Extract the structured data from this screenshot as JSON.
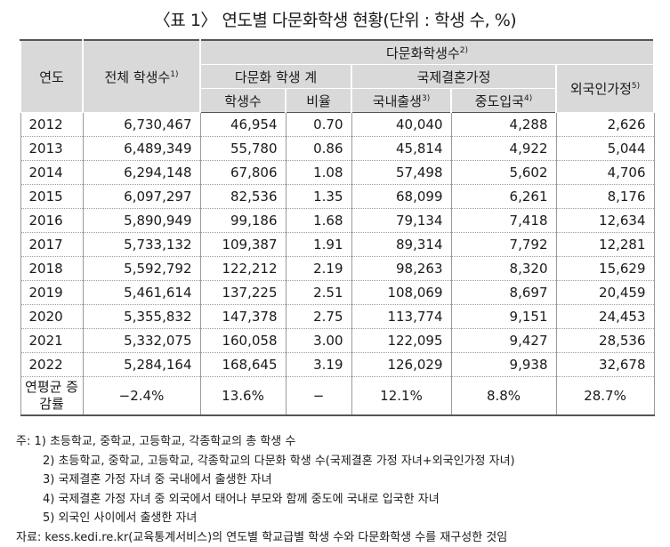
{
  "title": "〈표 1〉 연도별 다문화학생 현황(단위 : 학생 수, %)",
  "header": {
    "year": "연도",
    "total": "전체 학생수",
    "total_sup": "1)",
    "multi_group": "다문화학생수",
    "multi_group_sup": "2)",
    "multi_total": "다문화 학생 계",
    "intl_marriage": "국제결혼가정",
    "foreign": "외국인가정",
    "foreign_sup": "5)",
    "students": "학생수",
    "ratio": "비율",
    "domestic_born": "국내출생",
    "domestic_born_sup": "3)",
    "mid_entry": "중도입국",
    "mid_entry_sup": "4)"
  },
  "rows": [
    {
      "year": "2012",
      "total": "6,730,467",
      "students": "46,954",
      "ratio": "0.70",
      "domestic": "40,040",
      "mid": "4,288",
      "foreign": "2,626"
    },
    {
      "year": "2013",
      "total": "6,489,349",
      "students": "55,780",
      "ratio": "0.86",
      "domestic": "45,814",
      "mid": "4,922",
      "foreign": "5,044"
    },
    {
      "year": "2014",
      "total": "6,294,148",
      "students": "67,806",
      "ratio": "1.08",
      "domestic": "57,498",
      "mid": "5,602",
      "foreign": "4,706"
    },
    {
      "year": "2015",
      "total": "6,097,297",
      "students": "82,536",
      "ratio": "1.35",
      "domestic": "68,099",
      "mid": "6,261",
      "foreign": "8,176"
    },
    {
      "year": "2016",
      "total": "5,890,949",
      "students": "99,186",
      "ratio": "1.68",
      "domestic": "79,134",
      "mid": "7,418",
      "foreign": "12,634"
    },
    {
      "year": "2017",
      "total": "5,733,132",
      "students": "109,387",
      "ratio": "1.91",
      "domestic": "89,314",
      "mid": "7,792",
      "foreign": "12,281"
    },
    {
      "year": "2018",
      "total": "5,592,792",
      "students": "122,212",
      "ratio": "2.19",
      "domestic": "98,263",
      "mid": "8,320",
      "foreign": "15,629"
    },
    {
      "year": "2019",
      "total": "5,461,614",
      "students": "137,225",
      "ratio": "2.51",
      "domestic": "108,069",
      "mid": "8,697",
      "foreign": "20,459"
    },
    {
      "year": "2020",
      "total": "5,355,832",
      "students": "147,378",
      "ratio": "2.75",
      "domestic": "113,774",
      "mid": "9,151",
      "foreign": "24,453"
    },
    {
      "year": "2021",
      "total": "5,332,075",
      "students": "160,058",
      "ratio": "3.00",
      "domestic": "122,095",
      "mid": "9,427",
      "foreign": "28,536"
    },
    {
      "year": "2022",
      "total": "5,284,164",
      "students": "168,645",
      "ratio": "3.19",
      "domestic": "126,029",
      "mid": "9,938",
      "foreign": "32,678"
    }
  ],
  "growth": {
    "label": "연평균 증감률",
    "total": "−2.4%",
    "students": "13.6%",
    "ratio": "−",
    "domestic": "12.1%",
    "mid": "8.8%",
    "foreign": "28.7%"
  },
  "notes": {
    "prefix": "주:",
    "n1": "1) 초등학교, 중학교, 고등학교, 각종학교의 총 학생 수",
    "n2": "2) 초등학교, 중학교, 고등학교, 각종학교의 다문화 학생 수(국제결혼 가정 자녀+외국인가정 자녀)",
    "n3": "3) 국제결혼 가정 자녀 중 국내에서 출생한 자녀",
    "n4": "4) 국제결혼 가정 자녀 중 외국에서 태어나 부모와 함께 중도에 국내로 입국한 자녀",
    "n5": "5) 외국인 사이에서 출생한 자녀",
    "source": "자료: kess.kedi.re.kr(교육통계서비스)의 연도별 학교급별 학생 수와 다문화학생 수를 재구성한 것임"
  }
}
